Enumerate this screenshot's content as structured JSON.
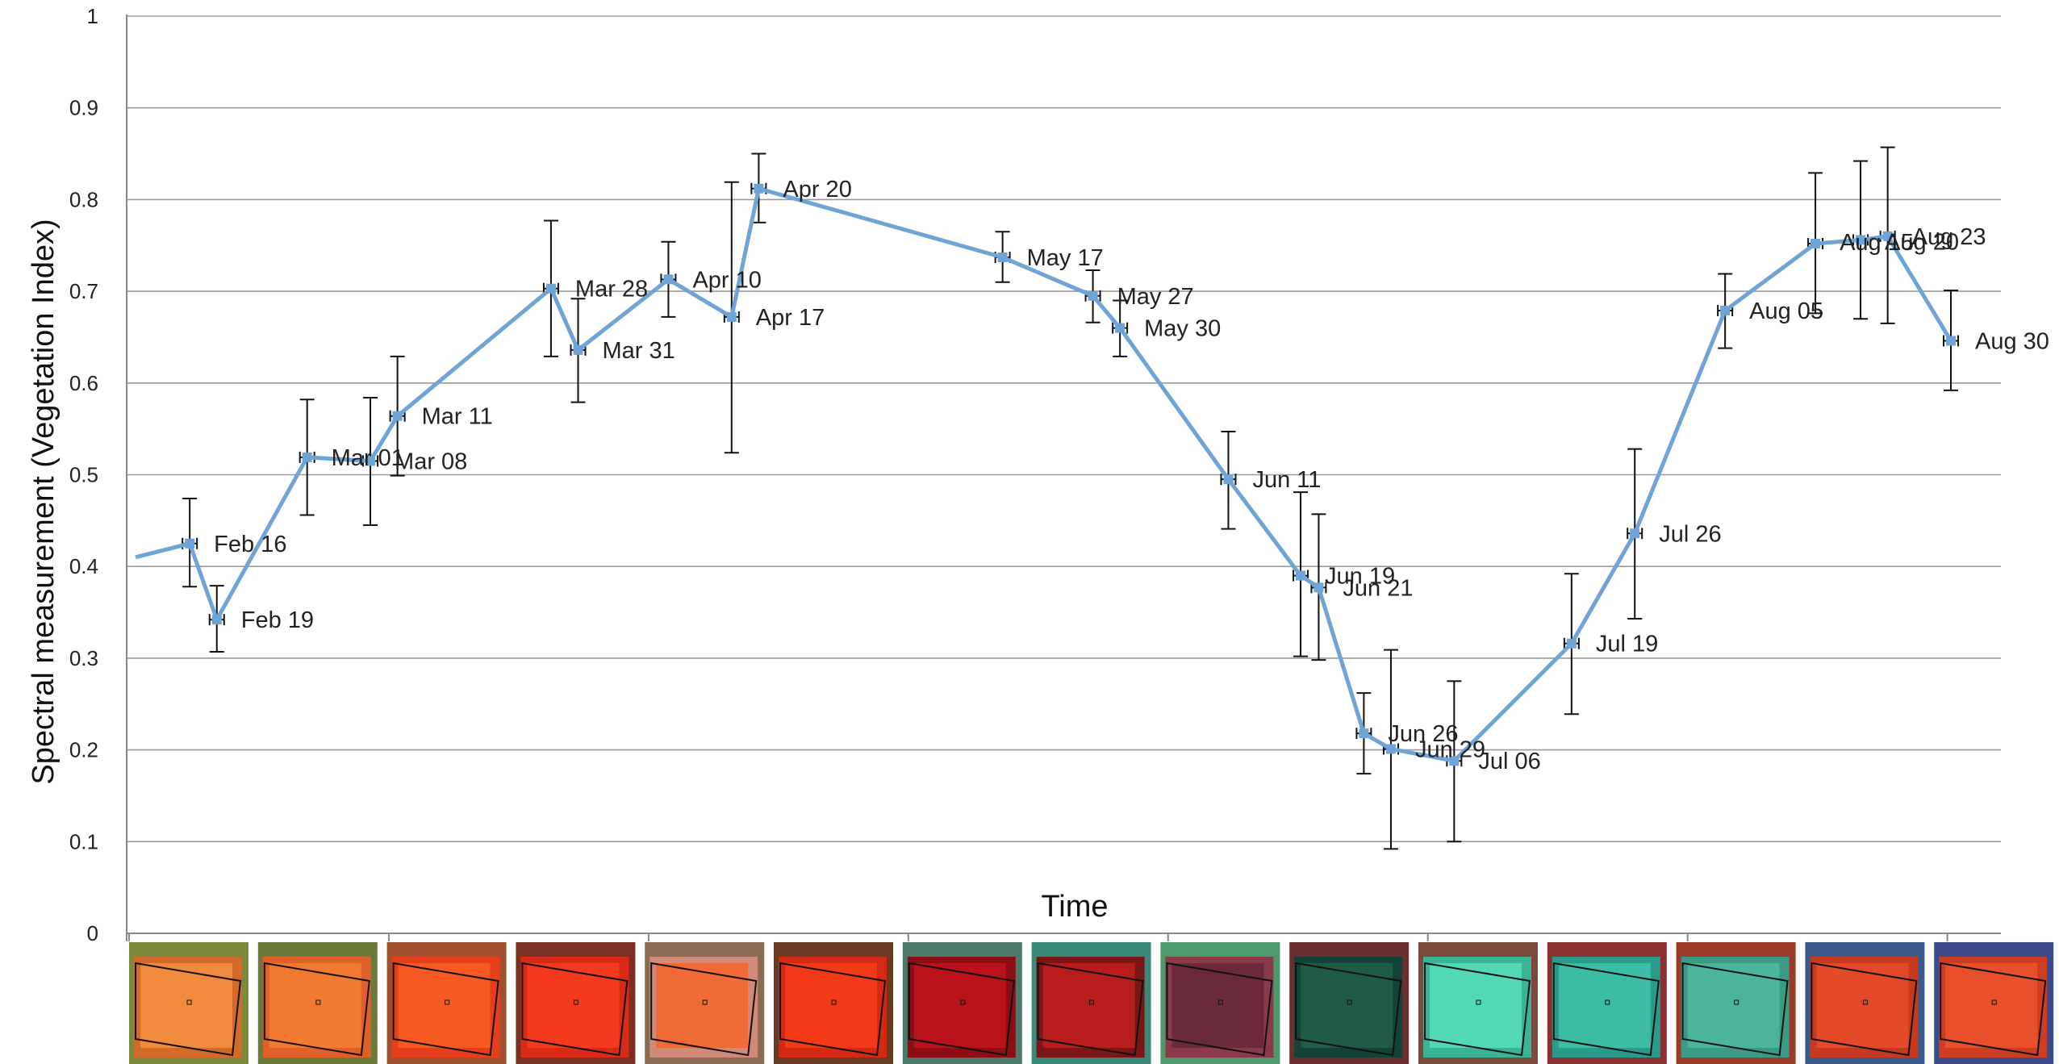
{
  "colors": {
    "line": "#6fa4d6",
    "grid": "#9a9a9a",
    "errorbar": "#111111",
    "axis": "#888888"
  },
  "chart_data": {
    "type": "line",
    "title": "",
    "xlabel": "Time",
    "ylabel": "Spectral measurement (Vegetation Index)",
    "ylim": [
      0,
      1
    ],
    "yticks": [
      0,
      0.1,
      0.2,
      0.3,
      0.4,
      0.5,
      0.6,
      0.7,
      0.8,
      0.9,
      1
    ],
    "ytick_labels": [
      "0",
      "0.1",
      "0.2",
      "0.3",
      "0.4",
      "0.5",
      "0.6",
      "0.7",
      "0.8",
      "0.9",
      "1"
    ],
    "grid": true,
    "x_domain": [
      "Feb 10",
      "Aug 30"
    ],
    "line_start": {
      "x": "Feb 10",
      "y": 0.41
    },
    "series": [
      {
        "points": [
          {
            "label": "Feb 16",
            "x": "Feb 16",
            "y": 0.425,
            "err_low": 0.378,
            "err_high": 0.474
          },
          {
            "label": "Feb 19",
            "x": "Feb 19",
            "y": 0.342,
            "err_low": 0.307,
            "err_high": 0.379
          },
          {
            "label": "Mar 01",
            "x": "Mar 01",
            "y": 0.519,
            "err_low": 0.456,
            "err_high": 0.582
          },
          {
            "label": "Mar 08",
            "x": "Mar 08",
            "y": 0.515,
            "err_low": 0.445,
            "err_high": 0.584
          },
          {
            "label": "Mar 11",
            "x": "Mar 11",
            "y": 0.564,
            "err_low": 0.499,
            "err_high": 0.629
          },
          {
            "label": "Mar 28",
            "x": "Mar 28",
            "y": 0.703,
            "err_low": 0.629,
            "err_high": 0.777
          },
          {
            "label": "Mar 31",
            "x": "Mar 31",
            "y": 0.636,
            "err_low": 0.579,
            "err_high": 0.692
          },
          {
            "label": "Apr 10",
            "x": "Apr 10",
            "y": 0.713,
            "err_low": 0.672,
            "err_high": 0.754
          },
          {
            "label": "Apr 17",
            "x": "Apr 17",
            "y": 0.672,
            "err_low": 0.524,
            "err_high": 0.819
          },
          {
            "label": "Apr 20",
            "x": "Apr 20",
            "y": 0.812,
            "err_low": 0.775,
            "err_high": 0.85
          },
          {
            "label": "May 17",
            "x": "May 17",
            "y": 0.737,
            "err_low": 0.71,
            "err_high": 0.765
          },
          {
            "label": "May 27",
            "x": "May 27",
            "y": 0.695,
            "err_low": 0.666,
            "err_high": 0.723
          },
          {
            "label": "May 30",
            "x": "May 30",
            "y": 0.66,
            "err_low": 0.629,
            "err_high": 0.69
          },
          {
            "label": "Jun 11",
            "x": "Jun 11",
            "y": 0.495,
            "err_low": 0.441,
            "err_high": 0.547
          },
          {
            "label": "Jun 19",
            "x": "Jun 19",
            "y": 0.39,
            "err_low": 0.302,
            "err_high": 0.481
          },
          {
            "label": "Jun 21",
            "x": "Jun 21",
            "y": 0.377,
            "err_low": 0.298,
            "err_high": 0.457
          },
          {
            "label": "Jun 26",
            "x": "Jun 26",
            "y": 0.218,
            "err_low": 0.174,
            "err_high": 0.262
          },
          {
            "label": "Jun 29",
            "x": "Jun 29",
            "y": 0.201,
            "err_low": 0.092,
            "err_high": 0.309
          },
          {
            "label": "Jul 06",
            "x": "Jul 06",
            "y": 0.188,
            "err_low": 0.1,
            "err_high": 0.275
          },
          {
            "label": "Jul 19",
            "x": "Jul 19",
            "y": 0.316,
            "err_low": 0.239,
            "err_high": 0.392
          },
          {
            "label": "Jul 26",
            "x": "Jul 26",
            "y": 0.436,
            "err_low": 0.343,
            "err_high": 0.528
          },
          {
            "label": "Aug 05",
            "x": "Aug 05",
            "y": 0.679,
            "err_low": 0.638,
            "err_high": 0.719
          },
          {
            "label": "Aug 15",
            "x": "Aug 15",
            "y": 0.752,
            "err_low": 0.676,
            "err_high": 0.829
          },
          {
            "label": "Aug 20",
            "x": "Aug 20",
            "y": 0.756,
            "err_low": 0.67,
            "err_high": 0.842
          },
          {
            "label": "Aug 23",
            "x": "Aug 23",
            "y": 0.76,
            "err_low": 0.665,
            "err_high": 0.857
          },
          {
            "label": "Aug 30",
            "x": "Aug 30",
            "y": 0.646,
            "err_low": 0.592,
            "err_high": 0.701
          }
        ]
      }
    ]
  },
  "thumbnails": [
    {
      "tone": "#f08a3c",
      "tone2": "#d46a2a",
      "edge": "#7a8a3a"
    },
    {
      "tone": "#f27a30",
      "tone2": "#e0602a",
      "edge": "#6a7a3a"
    },
    {
      "tone": "#f55a22",
      "tone2": "#e43e1a",
      "edge": "#a05030"
    },
    {
      "tone": "#f43a1c",
      "tone2": "#d82a16",
      "edge": "#7a3020"
    },
    {
      "tone": "#ef6a34",
      "tone2": "#cf8a7a",
      "edge": "#8a6a50"
    },
    {
      "tone": "#f23a18",
      "tone2": "#d22a14",
      "edge": "#6a3a20"
    },
    {
      "tone": "#b8121a",
      "tone2": "#8a0e14",
      "edge": "#4a7a6a"
    },
    {
      "tone": "#b81d1d",
      "tone2": "#7a1616",
      "edge": "#3a8a7a"
    },
    {
      "tone": "#6a2a3a",
      "tone2": "#8a3a4a",
      "edge": "#4a9a6a"
    },
    {
      "tone": "#1f5a46",
      "tone2": "#154236",
      "edge": "#6a3030"
    },
    {
      "tone": "#52d8b4",
      "tone2": "#3ab494",
      "edge": "#7a4a3a"
    },
    {
      "tone": "#3cbca4",
      "tone2": "#2a9a8a",
      "edge": "#8a3030"
    },
    {
      "tone": "#4ab49c",
      "tone2": "#3a9a84",
      "edge": "#9a3a2a"
    },
    {
      "tone": "#e24a2a",
      "tone2": "#c63a22",
      "edge": "#3a5a8a"
    },
    {
      "tone": "#e8502c",
      "tone2": "#cc3e24",
      "edge": "#3a4a8a"
    }
  ]
}
